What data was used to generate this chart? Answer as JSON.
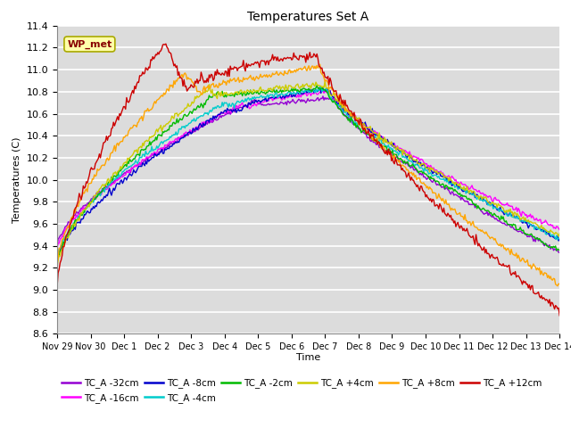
{
  "title": "Temperatures Set A",
  "xlabel": "Time",
  "ylabel": "Temperatures (C)",
  "ylim": [
    8.6,
    11.4
  ],
  "x_tick_labels": [
    "Nov 29",
    "Nov 30",
    "Dec 1",
    "Dec 2",
    "Dec 3",
    "Dec 4",
    "Dec 5",
    "Dec 6",
    "Dec 7",
    "Dec 8",
    "Dec 9",
    "Dec 10",
    "Dec 11",
    "Dec 12",
    "Dec 13",
    "Dec 14"
  ],
  "series": [
    {
      "label": "TC_A -32cm",
      "color": "#9400D3"
    },
    {
      "label": "TC_A -16cm",
      "color": "#FF00FF"
    },
    {
      "label": "TC_A -8cm",
      "color": "#0000CC"
    },
    {
      "label": "TC_A -4cm",
      "color": "#00CCCC"
    },
    {
      "label": "TC_A -2cm",
      "color": "#00BB00"
    },
    {
      "label": "TC_A +4cm",
      "color": "#CCCC00"
    },
    {
      "label": "TC_A +8cm",
      "color": "#FFA500"
    },
    {
      "label": "TC_A +12cm",
      "color": "#CC0000"
    }
  ],
  "wp_met_box_facecolor": "#FFFFAA",
  "wp_met_box_edgecolor": "#AAAA00",
  "wp_met_text_color": "#880000",
  "plot_background": "#DCDCDC",
  "grid_color": "#FFFFFF",
  "n_points": 500,
  "legend_row1": [
    "TC_A -32cm",
    "TC_A -16cm",
    "TC_A -8cm",
    "TC_A -4cm",
    "TC_A -2cm",
    "TC_A +4cm"
  ],
  "legend_row2": [
    "TC_A +8cm",
    "TC_A +12cm"
  ]
}
